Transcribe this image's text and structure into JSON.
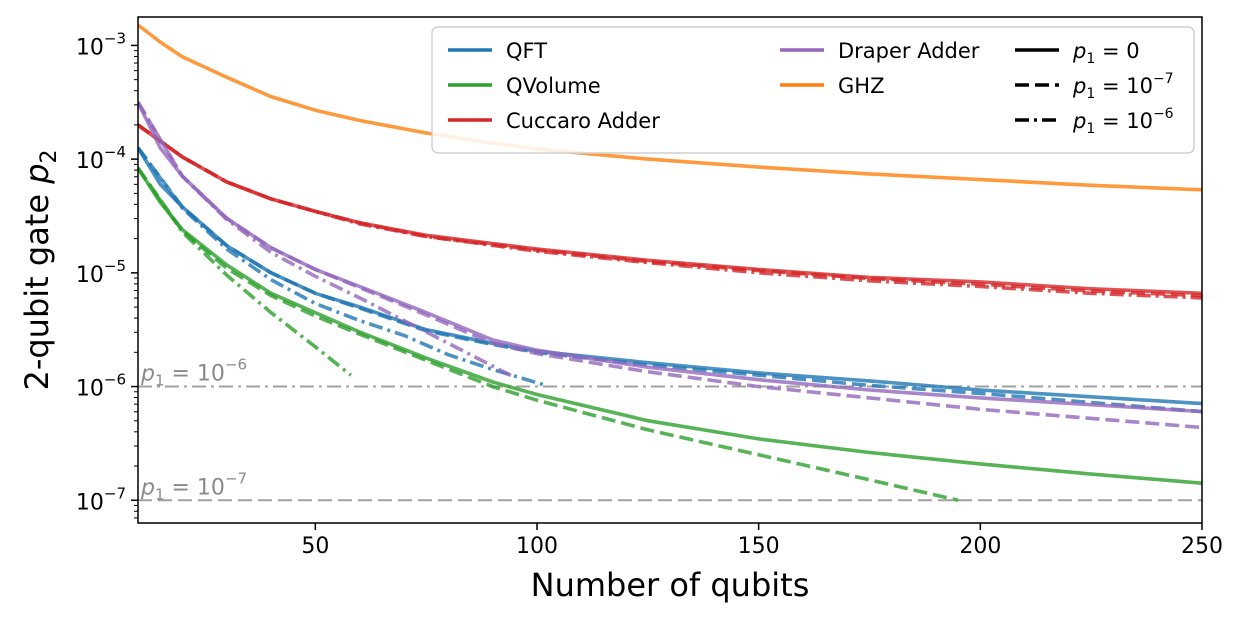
{
  "chart_data": {
    "type": "line",
    "xlabel": "Number of qubits",
    "ylabel_main": "2-qubit gate ",
    "ylabel_var": "p",
    "ylabel_sub": "2",
    "xlim": [
      10,
      250
    ],
    "ylim_log10": [
      -7.2,
      -2.75
    ],
    "yscale": "log",
    "x_ticks": [
      {
        "value": 50,
        "label": "50"
      },
      {
        "value": 100,
        "label": "100"
      },
      {
        "value": 150,
        "label": "150"
      },
      {
        "value": 200,
        "label": "200"
      },
      {
        "value": 250,
        "label": "250"
      }
    ],
    "y_ticks": [
      {
        "exp": -3,
        "base": "10",
        "sup": "−3"
      },
      {
        "exp": -4,
        "base": "10",
        "sup": "−4"
      },
      {
        "exp": -5,
        "base": "10",
        "sup": "−5"
      },
      {
        "exp": -6,
        "base": "10",
        "sup": "−6"
      },
      {
        "exp": -7,
        "base": "10",
        "sup": "−7"
      }
    ],
    "reference_lines": [
      {
        "name": "p1-1e-6",
        "log10": -6,
        "style": "dashdot",
        "color": "#a0a0a0",
        "label_var": "p",
        "label_sub": "1",
        "label_eq": " = 10",
        "label_sup": "−6"
      },
      {
        "name": "p1-1e-7",
        "log10": -7,
        "style": "dashed",
        "color": "#a0a0a0",
        "label_var": "p",
        "label_sub": "1",
        "label_eq": " = 10",
        "label_sup": "−7"
      }
    ],
    "series": [
      {
        "name": "QFT",
        "color": "#1f77b4",
        "style": "solid",
        "x": [
          10,
          15,
          20,
          30,
          40,
          50,
          60,
          75,
          90,
          100,
          125,
          150,
          175,
          200,
          225,
          250
        ],
        "log10_y": [
          -3.9,
          -4.22,
          -4.42,
          -4.76,
          -5.0,
          -5.18,
          -5.3,
          -5.5,
          -5.62,
          -5.69,
          -5.79,
          -5.88,
          -5.95,
          -6.03,
          -6.09,
          -6.15
        ]
      },
      {
        "name": "QFT",
        "color": "#1f77b4",
        "style": "dashed",
        "x": [
          10,
          20,
          30,
          40,
          50,
          60,
          75,
          90,
          100,
          125,
          150,
          175,
          200,
          225,
          250
        ],
        "log10_y": [
          -3.9,
          -4.42,
          -4.76,
          -5.0,
          -5.18,
          -5.31,
          -5.51,
          -5.63,
          -5.7,
          -5.81,
          -5.9,
          -5.99,
          -6.06,
          -6.14,
          -6.22
        ]
      },
      {
        "name": "QFT",
        "color": "#1f77b4",
        "style": "dashdot",
        "x": [
          10,
          20,
          30,
          40,
          50,
          60,
          70,
          80,
          90,
          102
        ],
        "log10_y": [
          -3.9,
          -4.43,
          -4.79,
          -5.06,
          -5.27,
          -5.42,
          -5.55,
          -5.72,
          -5.85,
          -5.99
        ]
      },
      {
        "name": "QVolume",
        "color": "#2ca02c",
        "style": "solid",
        "x": [
          10,
          15,
          20,
          30,
          40,
          50,
          60,
          75,
          90,
          100,
          125,
          150,
          175,
          200,
          225,
          250
        ],
        "log10_y": [
          -4.08,
          -4.38,
          -4.62,
          -4.93,
          -5.18,
          -5.35,
          -5.52,
          -5.75,
          -5.96,
          -6.07,
          -6.3,
          -6.46,
          -6.58,
          -6.68,
          -6.77,
          -6.85
        ]
      },
      {
        "name": "QVolume",
        "color": "#2ca02c",
        "style": "dashed",
        "x": [
          10,
          20,
          30,
          40,
          50,
          60,
          75,
          90,
          100,
          125,
          150,
          175,
          195
        ],
        "log10_y": [
          -4.08,
          -4.63,
          -4.96,
          -5.2,
          -5.38,
          -5.54,
          -5.77,
          -6.0,
          -6.12,
          -6.38,
          -6.6,
          -6.82,
          -7.0
        ]
      },
      {
        "name": "QVolume",
        "color": "#2ca02c",
        "style": "dashdot",
        "x": [
          10,
          20,
          30,
          40,
          50,
          58
        ],
        "log10_y": [
          -4.08,
          -4.64,
          -5.02,
          -5.35,
          -5.65,
          -5.9
        ]
      },
      {
        "name": "Cuccaro Adder",
        "color": "#d62728",
        "style": "solid",
        "x": [
          10,
          20,
          30,
          40,
          50,
          60,
          75,
          100,
          125,
          150,
          175,
          200,
          225,
          250
        ],
        "log10_y": [
          -3.7,
          -3.98,
          -4.2,
          -4.35,
          -4.46,
          -4.56,
          -4.67,
          -4.79,
          -4.89,
          -4.97,
          -5.04,
          -5.08,
          -5.14,
          -5.18
        ]
      },
      {
        "name": "Cuccaro Adder",
        "color": "#d62728",
        "style": "dashed",
        "x": [
          10,
          20,
          30,
          40,
          50,
          60,
          75,
          100,
          125,
          150,
          175,
          200,
          225,
          250
        ],
        "log10_y": [
          -3.7,
          -3.98,
          -4.2,
          -4.35,
          -4.46,
          -4.56,
          -4.68,
          -4.8,
          -4.9,
          -4.98,
          -5.05,
          -5.1,
          -5.16,
          -5.2
        ]
      },
      {
        "name": "Cuccaro Adder",
        "color": "#d62728",
        "style": "dashdot",
        "x": [
          10,
          20,
          30,
          40,
          50,
          60,
          75,
          100,
          125,
          150,
          175,
          200,
          225,
          250
        ],
        "log10_y": [
          -3.7,
          -3.98,
          -4.2,
          -4.35,
          -4.46,
          -4.57,
          -4.68,
          -4.81,
          -4.91,
          -5.0,
          -5.07,
          -5.12,
          -5.18,
          -5.22
        ]
      },
      {
        "name": "Draper Adder",
        "color": "#9467bd",
        "style": "solid",
        "x": [
          10,
          15,
          20,
          30,
          40,
          50,
          60,
          75,
          90,
          100,
          125,
          150,
          175,
          200,
          225,
          250
        ],
        "log10_y": [
          -3.5,
          -3.9,
          -4.15,
          -4.52,
          -4.78,
          -4.97,
          -5.12,
          -5.35,
          -5.59,
          -5.68,
          -5.83,
          -5.94,
          -6.03,
          -6.1,
          -6.16,
          -6.22
        ]
      },
      {
        "name": "Draper Adder",
        "color": "#9467bd",
        "style": "dashed",
        "x": [
          10,
          20,
          30,
          40,
          50,
          60,
          75,
          90,
          100,
          125,
          150,
          175,
          200,
          225,
          250
        ],
        "log10_y": [
          -3.5,
          -4.15,
          -4.52,
          -4.78,
          -4.97,
          -5.13,
          -5.37,
          -5.62,
          -5.71,
          -5.87,
          -6.0,
          -6.1,
          -6.2,
          -6.28,
          -6.36
        ]
      },
      {
        "name": "Draper Adder",
        "color": "#9467bd",
        "style": "dashdot",
        "x": [
          10,
          20,
          30,
          40,
          50,
          60,
          70,
          80,
          90,
          95
        ],
        "log10_y": [
          -3.5,
          -4.15,
          -4.53,
          -4.82,
          -5.03,
          -5.22,
          -5.42,
          -5.62,
          -5.82,
          -5.92
        ]
      },
      {
        "name": "GHZ",
        "color": "#ff7f0e",
        "style": "solid",
        "x": [
          10,
          15,
          20,
          30,
          40,
          50,
          60,
          75,
          90,
          100,
          125,
          150,
          175,
          200,
          225,
          250
        ],
        "log10_y": [
          -2.82,
          -2.97,
          -3.1,
          -3.28,
          -3.45,
          -3.57,
          -3.66,
          -3.77,
          -3.86,
          -3.91,
          -4.0,
          -4.07,
          -4.13,
          -4.18,
          -4.23,
          -4.27
        ]
      }
    ],
    "legend": {
      "placement": "top-right",
      "items": [
        {
          "label": "QFT",
          "color": "#1f77b4",
          "style": "solid"
        },
        {
          "label": "QVolume",
          "color": "#2ca02c",
          "style": "solid"
        },
        {
          "label": "Cuccaro Adder",
          "color": "#d62728",
          "style": "solid"
        },
        {
          "label": "Draper Adder",
          "color": "#9467bd",
          "style": "solid"
        },
        {
          "label": "GHZ",
          "color": "#ff7f0e",
          "style": "solid"
        },
        {
          "label_var": "p",
          "label_sub": "1",
          "label_eq": " = 0",
          "label_sup": "",
          "color": "#000000",
          "style": "solid"
        },
        {
          "label_var": "p",
          "label_sub": "1",
          "label_eq": " = 10",
          "label_sup": "−7",
          "color": "#000000",
          "style": "dashed"
        },
        {
          "label_var": "p",
          "label_sub": "1",
          "label_eq": " = 10",
          "label_sup": "−6",
          "color": "#000000",
          "style": "dashdot"
        }
      ]
    }
  }
}
